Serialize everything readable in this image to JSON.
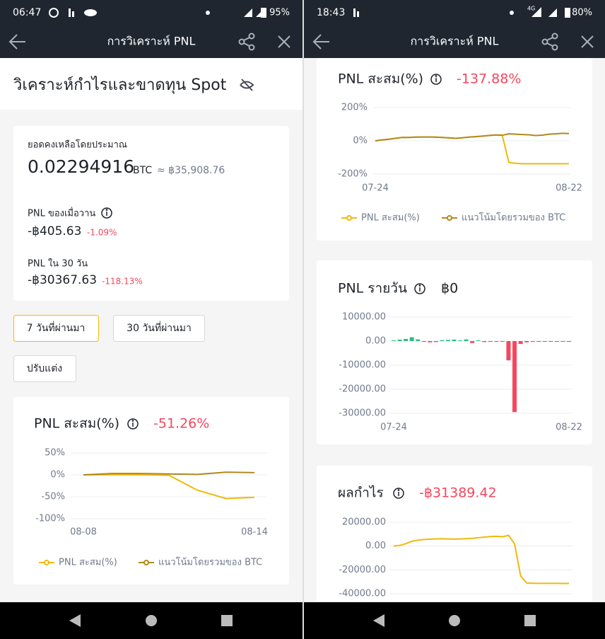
{
  "screens": [
    {
      "status": {
        "time": "06:47",
        "battery": "95%"
      },
      "header": "การวิเคราะห์ PNL",
      "section_title": "วิเคราะห์กำไรและขาดทุน Spot",
      "balance": {
        "label": "ยอดคงเหลือโดยประมาณ",
        "amount": "0.02294916",
        "unit": "BTC",
        "approx": "≈ ฿35,908.76"
      },
      "pnl_yesterday": {
        "label": "PNL ของเมื่อวาน",
        "value": "-฿405.63",
        "change": "-1.09%"
      },
      "pnl_30d": {
        "label": "PNL ใน 30 วัน",
        "value": "-฿30367.63",
        "change": "-118.13%"
      },
      "buttons": [
        "7 วันที่ผ่านมา",
        "30 วันที่ผ่านมา",
        "ปรับแต่ง"
      ]
    },
    {
      "status": {
        "time": "18:43",
        "network": "4G",
        "battery": "80%"
      },
      "header": "การวิเคราะห์ PNL"
    }
  ],
  "chart_data": [
    {
      "type": "line",
      "title": "PNL สะสม(%)",
      "headline": "-51.26%",
      "headline_color": "#f6465d",
      "categories": [
        "08-08",
        null,
        null,
        null,
        null,
        null,
        "08-14"
      ],
      "series": [
        {
          "name": "PNL สะสม(%)",
          "color": "#f0b90b",
          "values": [
            0,
            0,
            0,
            -1,
            -35,
            -54,
            -51.26
          ]
        },
        {
          "name": "แนวโน้มโดยรวมของ BTC",
          "color": "#b08a1e",
          "values": [
            0,
            3,
            3,
            2,
            1,
            6,
            5
          ]
        }
      ],
      "ylim": [
        -100,
        50
      ],
      "yticks": [
        {
          "value": 50,
          "label": "50%"
        },
        {
          "value": 0,
          "label": "0%"
        },
        {
          "value": -50,
          "label": "-50%"
        },
        {
          "value": -100,
          "label": "-100%"
        }
      ],
      "grid": true
    },
    {
      "type": "line",
      "title": "PNL สะสม(%)",
      "headline": "-137.88%",
      "headline_color": "#f6465d",
      "categories": [
        "07-24",
        null,
        null,
        null,
        null,
        null,
        null,
        null,
        null,
        null,
        null,
        null,
        null,
        null,
        null,
        null,
        null,
        null,
        null,
        null,
        null,
        null,
        null,
        null,
        null,
        null,
        null,
        null,
        null,
        "08-22"
      ],
      "series": [
        {
          "name": "PNL สะสม(%)",
          "color": "#f0b90b",
          "values": [
            0,
            5,
            10,
            15,
            20,
            20,
            22,
            23,
            23,
            22,
            20,
            18,
            15,
            18,
            22,
            25,
            28,
            32,
            35,
            35,
            -130,
            -135,
            -138,
            -138,
            -138,
            -138,
            -138,
            -138,
            -138,
            -137.88
          ]
        },
        {
          "name": "แนวโน้มโดยรวมของ BTC",
          "color": "#b08a1e",
          "values": [
            0,
            5,
            10,
            15,
            20,
            20,
            22,
            23,
            23,
            22,
            20,
            18,
            15,
            18,
            22,
            25,
            28,
            32,
            35,
            33,
            42,
            40,
            38,
            36,
            32,
            34,
            40,
            42,
            45,
            44
          ]
        }
      ],
      "ylim": [
        -200,
        200
      ],
      "yticks": [
        {
          "value": 200,
          "label": "200%"
        },
        {
          "value": 0,
          "label": "0%"
        },
        {
          "value": -200,
          "label": "-200%"
        }
      ],
      "grid": true
    },
    {
      "type": "bar",
      "title": "PNL รายวัน",
      "headline": "฿0",
      "headline_color": "#1e2329",
      "categories": [
        "07-24",
        null,
        null,
        null,
        null,
        null,
        null,
        null,
        null,
        null,
        null,
        null,
        null,
        null,
        null,
        null,
        null,
        null,
        null,
        null,
        null,
        null,
        null,
        null,
        null,
        null,
        null,
        null,
        null,
        "08-22"
      ],
      "values": [
        300,
        600,
        900,
        1600,
        700,
        -300,
        -500,
        -400,
        400,
        500,
        600,
        300,
        700,
        -800,
        300,
        -400,
        -300,
        -200,
        -300,
        -8000,
        -29500,
        -1200,
        -500,
        -300,
        -200,
        -300,
        -200,
        -100,
        -200,
        -150
      ],
      "colors": {
        "positive": "#2ebd85",
        "negative": "#f6465d"
      },
      "ylim": [
        -30000,
        10000
      ],
      "yticks": [
        {
          "value": 10000,
          "label": "10000.00"
        },
        {
          "value": 0,
          "label": "0.00"
        },
        {
          "value": -10000,
          "label": "-10000.00"
        },
        {
          "value": -20000,
          "label": "-20000.00"
        },
        {
          "value": -30000,
          "label": "-30000.00"
        }
      ],
      "grid": true
    },
    {
      "type": "line",
      "title": "ผลกำไร",
      "headline": "-฿31389.42",
      "headline_color": "#f6465d",
      "categories": [
        null,
        null,
        null,
        null,
        null,
        null,
        null,
        null,
        null,
        null,
        null,
        null,
        null,
        null,
        null,
        null,
        null,
        null,
        null,
        null,
        null,
        null,
        null,
        null,
        null,
        null,
        null,
        null,
        null,
        null
      ],
      "series": [
        {
          "color": "#f0b90b",
          "values": [
            0,
            500,
            2000,
            4000,
            5000,
            5500,
            5800,
            6000,
            6200,
            6000,
            5800,
            6000,
            6200,
            6500,
            7000,
            7500,
            8000,
            8200,
            7800,
            9000,
            2000,
            -25000,
            -31000,
            -31200,
            -31300,
            -31300,
            -31350,
            -31350,
            -31380,
            -31389.42
          ]
        }
      ],
      "ylim": [
        -40000,
        20000
      ],
      "yticks": [
        {
          "value": 20000,
          "label": "20000.00"
        },
        {
          "value": 0,
          "label": "0.00"
        },
        {
          "value": -20000,
          "label": "-20000.00"
        },
        {
          "value": -40000,
          "label": "-40000.00"
        }
      ],
      "grid": true
    }
  ]
}
